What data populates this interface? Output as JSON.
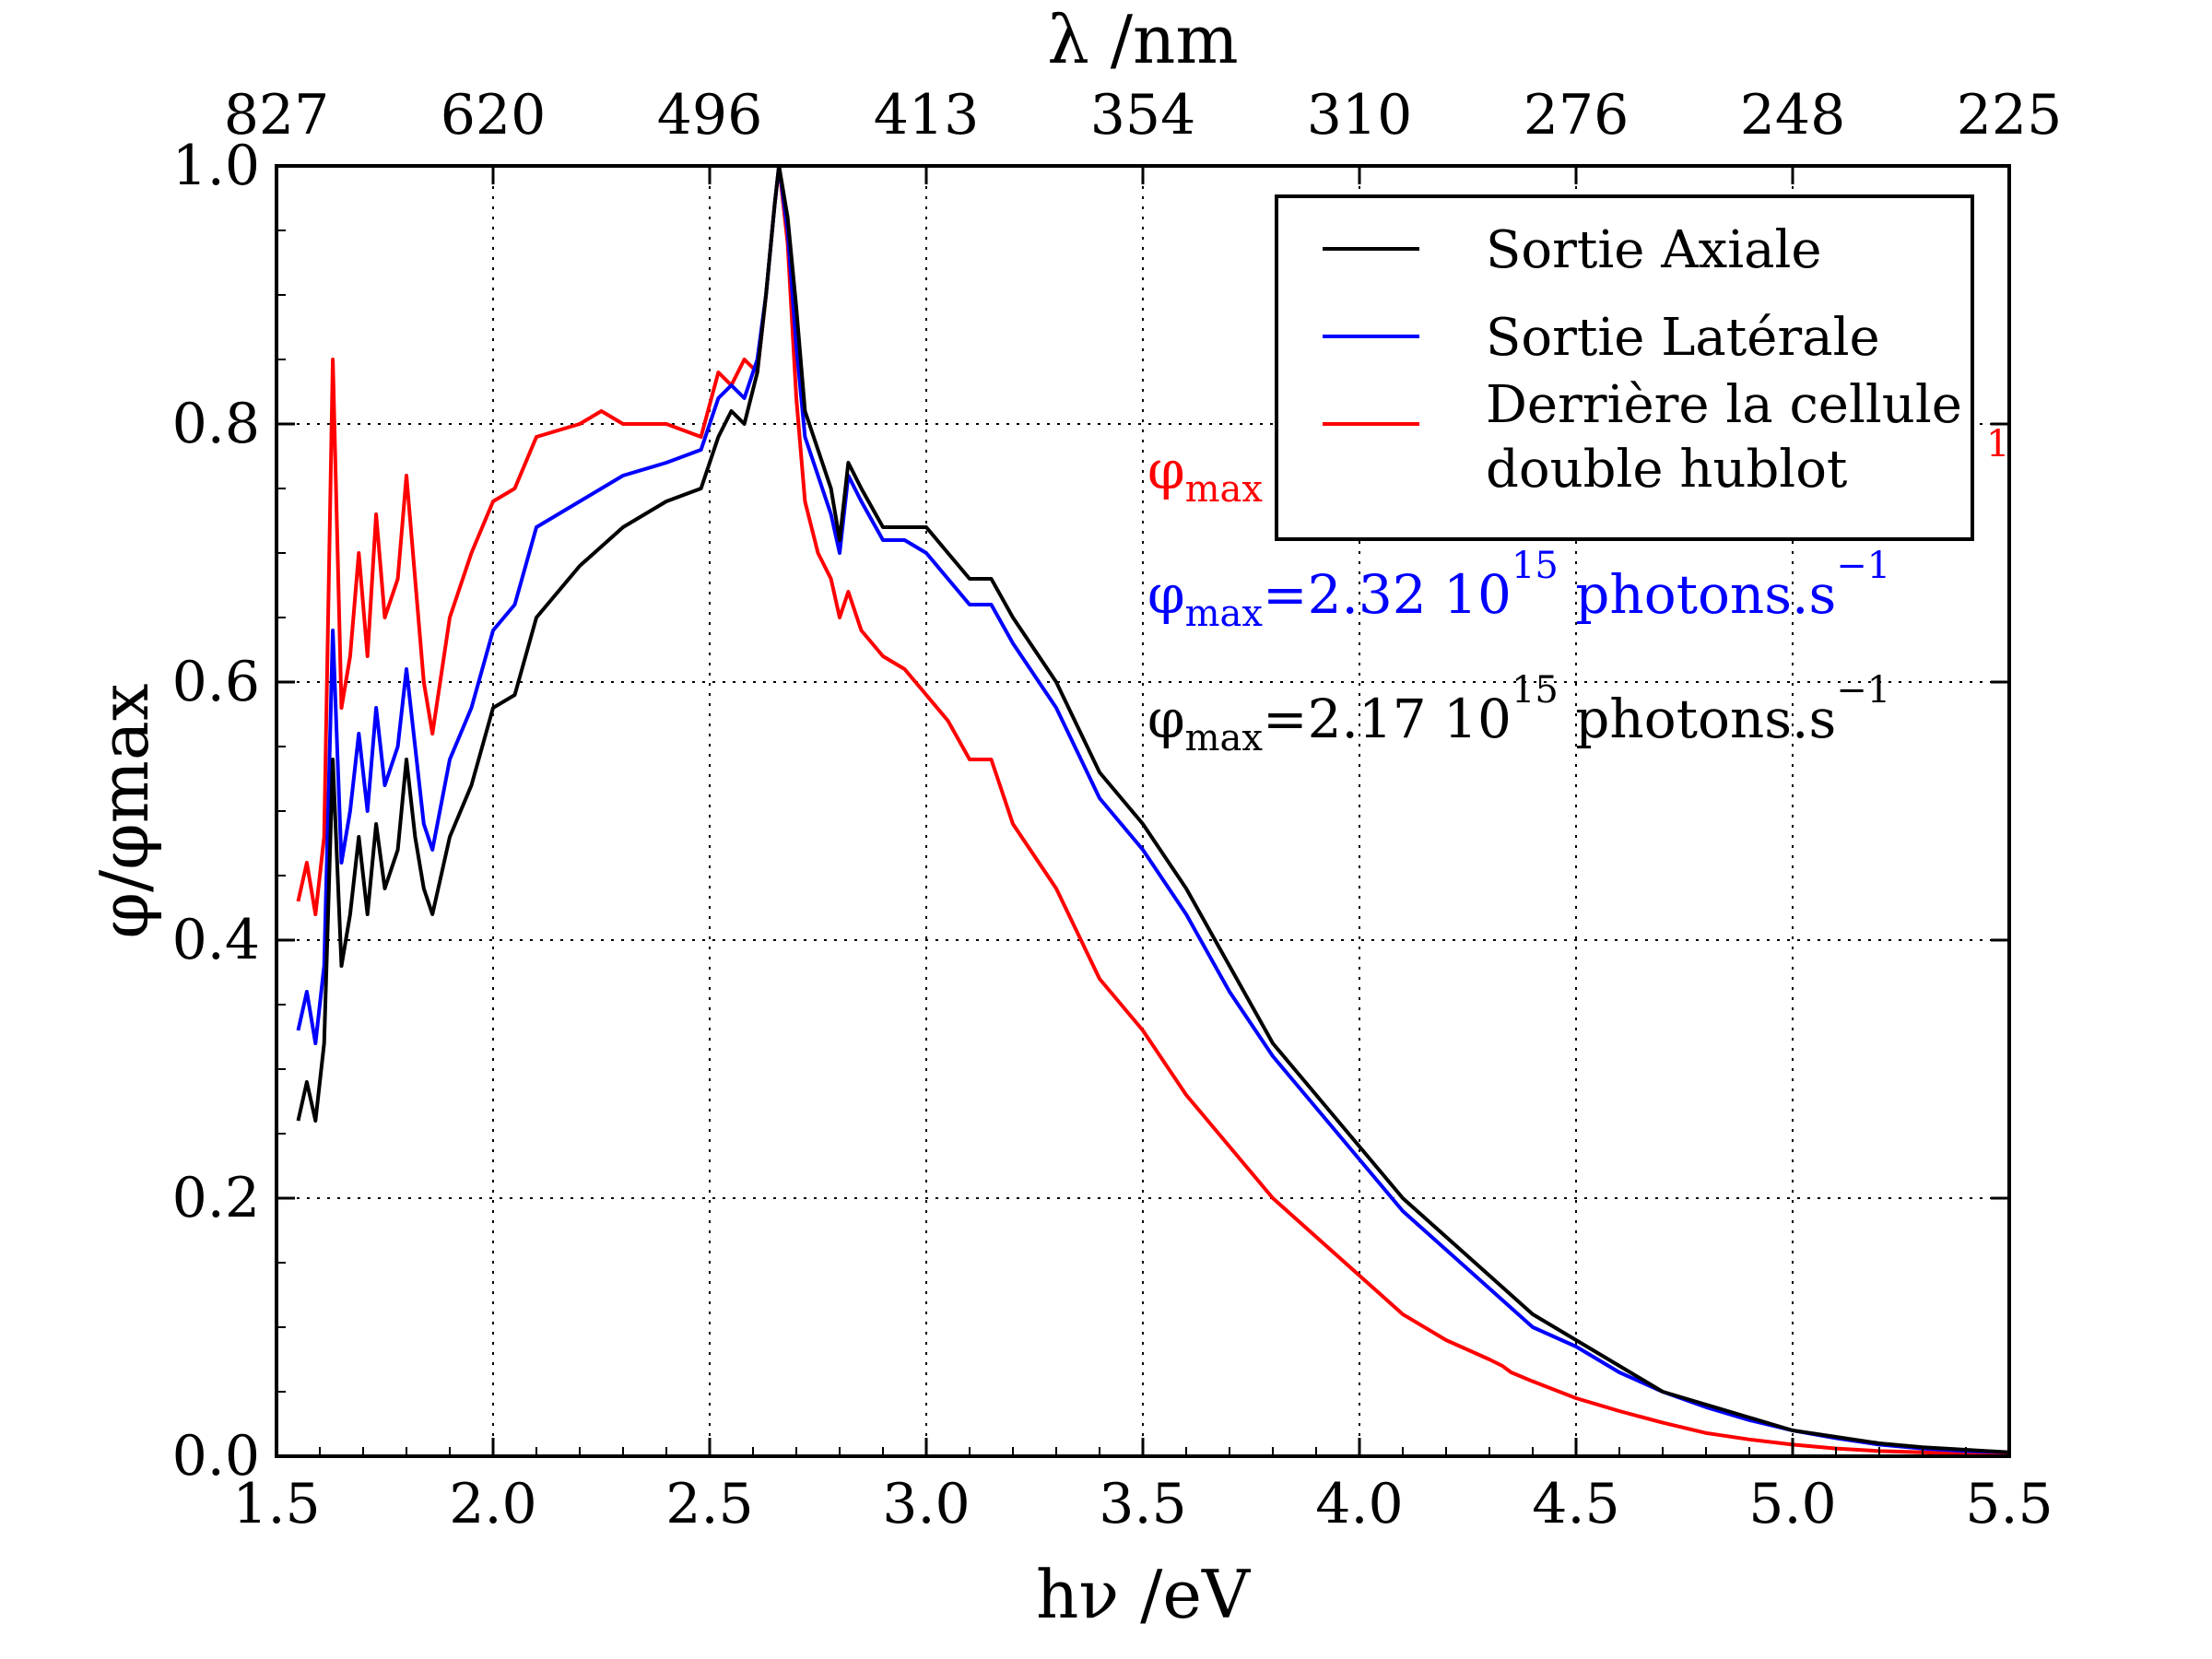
{
  "chart_data": {
    "type": "line",
    "xlabel": "hν /eV",
    "ylabel": "φ/φmax",
    "top_axis_label": "λ /nm",
    "xlim": [
      1.5,
      5.5
    ],
    "ylim": [
      0,
      1
    ],
    "x_ticks": [
      "1.5",
      "2.0",
      "2.5",
      "3.0",
      "3.5",
      "4.0",
      "4.5",
      "5.0",
      "5.5"
    ],
    "y_ticks": [
      "0.0",
      "0.2",
      "0.4",
      "0.6",
      "0.8",
      "1.0"
    ],
    "top_ticks": [
      {
        "label": "827",
        "value": 1.5
      },
      {
        "label": "620",
        "value": 2.0
      },
      {
        "label": "496",
        "value": 2.5
      },
      {
        "label": "413",
        "value": 3.0
      },
      {
        "label": "354",
        "value": 3.5
      },
      {
        "label": "310",
        "value": 4.0
      },
      {
        "label": "276",
        "value": 4.5
      },
      {
        "label": "248",
        "value": 5.0
      },
      {
        "label": "225",
        "value": 5.5
      }
    ],
    "grid": true,
    "legend_position": "top-right",
    "series": [
      {
        "name": "Sortie Axiale",
        "color": "#000000",
        "points": [
          [
            1.55,
            0.26
          ],
          [
            1.57,
            0.29
          ],
          [
            1.59,
            0.26
          ],
          [
            1.61,
            0.32
          ],
          [
            1.63,
            0.54
          ],
          [
            1.65,
            0.38
          ],
          [
            1.67,
            0.42
          ],
          [
            1.69,
            0.48
          ],
          [
            1.71,
            0.42
          ],
          [
            1.73,
            0.49
          ],
          [
            1.75,
            0.44
          ],
          [
            1.78,
            0.47
          ],
          [
            1.8,
            0.54
          ],
          [
            1.82,
            0.48
          ],
          [
            1.84,
            0.44
          ],
          [
            1.86,
            0.42
          ],
          [
            1.9,
            0.48
          ],
          [
            1.95,
            0.52
          ],
          [
            2.0,
            0.58
          ],
          [
            2.05,
            0.59
          ],
          [
            2.1,
            0.65
          ],
          [
            2.2,
            0.69
          ],
          [
            2.3,
            0.72
          ],
          [
            2.4,
            0.74
          ],
          [
            2.48,
            0.75
          ],
          [
            2.52,
            0.79
          ],
          [
            2.55,
            0.81
          ],
          [
            2.58,
            0.8
          ],
          [
            2.61,
            0.84
          ],
          [
            2.63,
            0.9
          ],
          [
            2.65,
            0.97
          ],
          [
            2.66,
            1.0
          ],
          [
            2.68,
            0.96
          ],
          [
            2.7,
            0.89
          ],
          [
            2.72,
            0.81
          ],
          [
            2.75,
            0.78
          ],
          [
            2.78,
            0.75
          ],
          [
            2.8,
            0.71
          ],
          [
            2.82,
            0.77
          ],
          [
            2.85,
            0.75
          ],
          [
            2.9,
            0.72
          ],
          [
            2.95,
            0.72
          ],
          [
            3.0,
            0.72
          ],
          [
            3.05,
            0.7
          ],
          [
            3.1,
            0.68
          ],
          [
            3.15,
            0.68
          ],
          [
            3.2,
            0.65
          ],
          [
            3.3,
            0.6
          ],
          [
            3.4,
            0.53
          ],
          [
            3.5,
            0.49
          ],
          [
            3.6,
            0.44
          ],
          [
            3.7,
            0.38
          ],
          [
            3.8,
            0.32
          ],
          [
            3.9,
            0.28
          ],
          [
            4.0,
            0.24
          ],
          [
            4.1,
            0.2
          ],
          [
            4.2,
            0.17
          ],
          [
            4.3,
            0.14
          ],
          [
            4.4,
            0.11
          ],
          [
            4.5,
            0.09
          ],
          [
            4.6,
            0.07
          ],
          [
            4.7,
            0.05
          ],
          [
            4.8,
            0.04
          ],
          [
            4.9,
            0.03
          ],
          [
            5.0,
            0.02
          ],
          [
            5.1,
            0.015
          ],
          [
            5.2,
            0.01
          ],
          [
            5.3,
            0.007
          ],
          [
            5.4,
            0.005
          ],
          [
            5.5,
            0.003
          ]
        ]
      },
      {
        "name": "Sortie Latérale",
        "color": "#0000ff",
        "points": [
          [
            1.55,
            0.33
          ],
          [
            1.57,
            0.36
          ],
          [
            1.59,
            0.32
          ],
          [
            1.61,
            0.38
          ],
          [
            1.63,
            0.64
          ],
          [
            1.65,
            0.46
          ],
          [
            1.67,
            0.5
          ],
          [
            1.69,
            0.56
          ],
          [
            1.71,
            0.5
          ],
          [
            1.73,
            0.58
          ],
          [
            1.75,
            0.52
          ],
          [
            1.78,
            0.55
          ],
          [
            1.8,
            0.61
          ],
          [
            1.82,
            0.55
          ],
          [
            1.84,
            0.49
          ],
          [
            1.86,
            0.47
          ],
          [
            1.9,
            0.54
          ],
          [
            1.95,
            0.58
          ],
          [
            2.0,
            0.64
          ],
          [
            2.05,
            0.66
          ],
          [
            2.1,
            0.72
          ],
          [
            2.2,
            0.74
          ],
          [
            2.3,
            0.76
          ],
          [
            2.4,
            0.77
          ],
          [
            2.48,
            0.78
          ],
          [
            2.52,
            0.82
          ],
          [
            2.55,
            0.83
          ],
          [
            2.58,
            0.82
          ],
          [
            2.61,
            0.85
          ],
          [
            2.63,
            0.9
          ],
          [
            2.65,
            0.97
          ],
          [
            2.66,
            1.0
          ],
          [
            2.68,
            0.95
          ],
          [
            2.7,
            0.86
          ],
          [
            2.72,
            0.79
          ],
          [
            2.75,
            0.76
          ],
          [
            2.78,
            0.73
          ],
          [
            2.8,
            0.7
          ],
          [
            2.82,
            0.76
          ],
          [
            2.85,
            0.74
          ],
          [
            2.9,
            0.71
          ],
          [
            2.95,
            0.71
          ],
          [
            3.0,
            0.7
          ],
          [
            3.05,
            0.68
          ],
          [
            3.1,
            0.66
          ],
          [
            3.15,
            0.66
          ],
          [
            3.2,
            0.63
          ],
          [
            3.3,
            0.58
          ],
          [
            3.4,
            0.51
          ],
          [
            3.5,
            0.47
          ],
          [
            3.6,
            0.42
          ],
          [
            3.7,
            0.36
          ],
          [
            3.8,
            0.31
          ],
          [
            3.9,
            0.27
          ],
          [
            4.0,
            0.23
          ],
          [
            4.1,
            0.19
          ],
          [
            4.2,
            0.16
          ],
          [
            4.3,
            0.13
          ],
          [
            4.4,
            0.1
          ],
          [
            4.5,
            0.085
          ],
          [
            4.6,
            0.065
          ],
          [
            4.7,
            0.05
          ],
          [
            4.8,
            0.038
          ],
          [
            4.9,
            0.028
          ],
          [
            5.0,
            0.02
          ],
          [
            5.1,
            0.014
          ],
          [
            5.2,
            0.009
          ],
          [
            5.3,
            0.006
          ],
          [
            5.4,
            0.004
          ],
          [
            5.5,
            0.003
          ]
        ]
      },
      {
        "name": "Derrière la cellule double hublot",
        "name_lines": [
          "Derrière la cellule",
          "double hublot"
        ],
        "color": "#ff0000",
        "points": [
          [
            1.55,
            0.43
          ],
          [
            1.57,
            0.46
          ],
          [
            1.59,
            0.42
          ],
          [
            1.61,
            0.48
          ],
          [
            1.63,
            0.85
          ],
          [
            1.65,
            0.58
          ],
          [
            1.67,
            0.62
          ],
          [
            1.69,
            0.7
          ],
          [
            1.71,
            0.62
          ],
          [
            1.73,
            0.73
          ],
          [
            1.75,
            0.65
          ],
          [
            1.78,
            0.68
          ],
          [
            1.8,
            0.76
          ],
          [
            1.82,
            0.68
          ],
          [
            1.84,
            0.6
          ],
          [
            1.86,
            0.56
          ],
          [
            1.9,
            0.65
          ],
          [
            1.95,
            0.7
          ],
          [
            2.0,
            0.74
          ],
          [
            2.05,
            0.75
          ],
          [
            2.1,
            0.79
          ],
          [
            2.2,
            0.8
          ],
          [
            2.25,
            0.81
          ],
          [
            2.3,
            0.8
          ],
          [
            2.4,
            0.8
          ],
          [
            2.48,
            0.79
          ],
          [
            2.52,
            0.84
          ],
          [
            2.55,
            0.83
          ],
          [
            2.58,
            0.85
          ],
          [
            2.61,
            0.84
          ],
          [
            2.63,
            0.9
          ],
          [
            2.65,
            0.97
          ],
          [
            2.66,
            1.0
          ],
          [
            2.68,
            0.94
          ],
          [
            2.7,
            0.82
          ],
          [
            2.72,
            0.74
          ],
          [
            2.75,
            0.7
          ],
          [
            2.78,
            0.68
          ],
          [
            2.8,
            0.65
          ],
          [
            2.82,
            0.67
          ],
          [
            2.85,
            0.64
          ],
          [
            2.9,
            0.62
          ],
          [
            2.95,
            0.61
          ],
          [
            3.0,
            0.59
          ],
          [
            3.05,
            0.57
          ],
          [
            3.1,
            0.54
          ],
          [
            3.15,
            0.54
          ],
          [
            3.2,
            0.49
          ],
          [
            3.3,
            0.44
          ],
          [
            3.4,
            0.37
          ],
          [
            3.5,
            0.33
          ],
          [
            3.6,
            0.28
          ],
          [
            3.7,
            0.24
          ],
          [
            3.8,
            0.2
          ],
          [
            3.9,
            0.17
          ],
          [
            4.0,
            0.14
          ],
          [
            4.1,
            0.11
          ],
          [
            4.2,
            0.09
          ],
          [
            4.3,
            0.075
          ],
          [
            4.33,
            0.07
          ],
          [
            4.35,
            0.065
          ],
          [
            4.4,
            0.058
          ],
          [
            4.5,
            0.045
          ],
          [
            4.6,
            0.035
          ],
          [
            4.7,
            0.026
          ],
          [
            4.8,
            0.018
          ],
          [
            4.9,
            0.013
          ],
          [
            5.0,
            0.009
          ],
          [
            5.1,
            0.006
          ],
          [
            5.2,
            0.004
          ],
          [
            5.3,
            0.003
          ],
          [
            5.4,
            0.002
          ],
          [
            5.5,
            0.001
          ]
        ]
      }
    ],
    "annotations": [
      {
        "prefix": "φ",
        "sub": "max",
        "text": "=2.32 10",
        "sup": "15",
        "unit": " photons.s",
        "unit_sup": "−1",
        "color": "#0000ff"
      },
      {
        "prefix": "φ",
        "sub": "max",
        "text": "=2.17 10",
        "sup": "15",
        "unit": " photons.s",
        "unit_sup": "−1",
        "color": "#000000"
      }
    ],
    "hidden_annotation": {
      "prefix": "φ",
      "sub": "max",
      "tail": "1",
      "color": "#ff0000"
    }
  }
}
